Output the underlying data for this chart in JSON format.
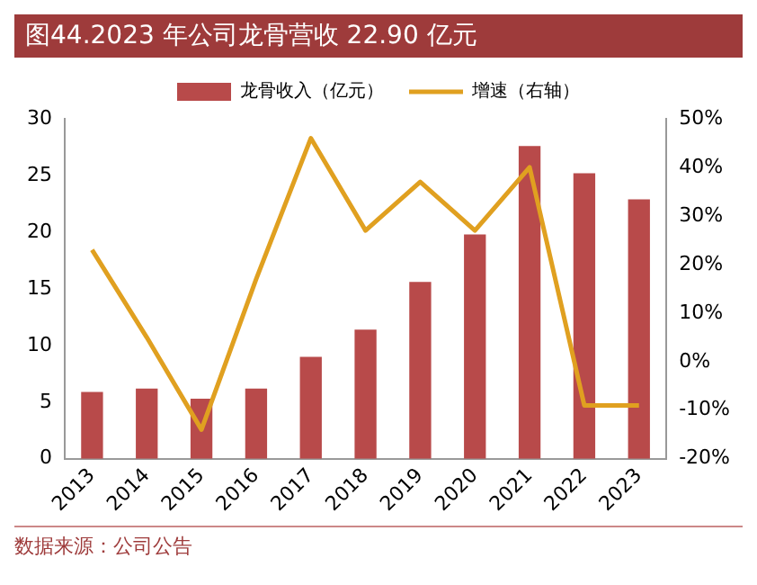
{
  "chart_data": {
    "type": "bar",
    "title": "图44.2023 年公司龙骨营收 22.90 亿元",
    "categories": [
      "2013",
      "2014",
      "2015",
      "2016",
      "2017",
      "2018",
      "2019",
      "2020",
      "2021",
      "2022",
      "2023"
    ],
    "series": [
      {
        "name": "龙骨收入（亿元）",
        "color": "#b84a4a",
        "values": [
          5.9,
          6.2,
          5.3,
          6.2,
          9.0,
          11.4,
          15.6,
          19.8,
          27.6,
          25.2,
          22.9
        ]
      },
      {
        "name": "增速（右轴）",
        "type": "line",
        "axis": "y2",
        "color": "#e0a020",
        "values": [
          23,
          5,
          -14,
          17,
          46,
          27,
          37,
          27,
          40,
          -9,
          -9
        ]
      }
    ],
    "ylim": [
      0,
      30
    ],
    "yticks": [
      0,
      5,
      10,
      15,
      20,
      25,
      30
    ],
    "y2lim": [
      -20,
      50
    ],
    "y2ticks": [
      {
        "value": -20,
        "label": "-20%"
      },
      {
        "value": -10,
        "label": "-10%"
      },
      {
        "value": 0,
        "label": "0%"
      },
      {
        "value": 10,
        "label": "10%"
      },
      {
        "value": 20,
        "label": "20%"
      },
      {
        "value": 30,
        "label": "30%"
      },
      {
        "value": 40,
        "label": "40%"
      },
      {
        "value": 50,
        "label": "50%"
      }
    ],
    "legend": "top",
    "grid": false,
    "marker": "none",
    "annotations": [
      "数据来源：公司公告"
    ]
  }
}
